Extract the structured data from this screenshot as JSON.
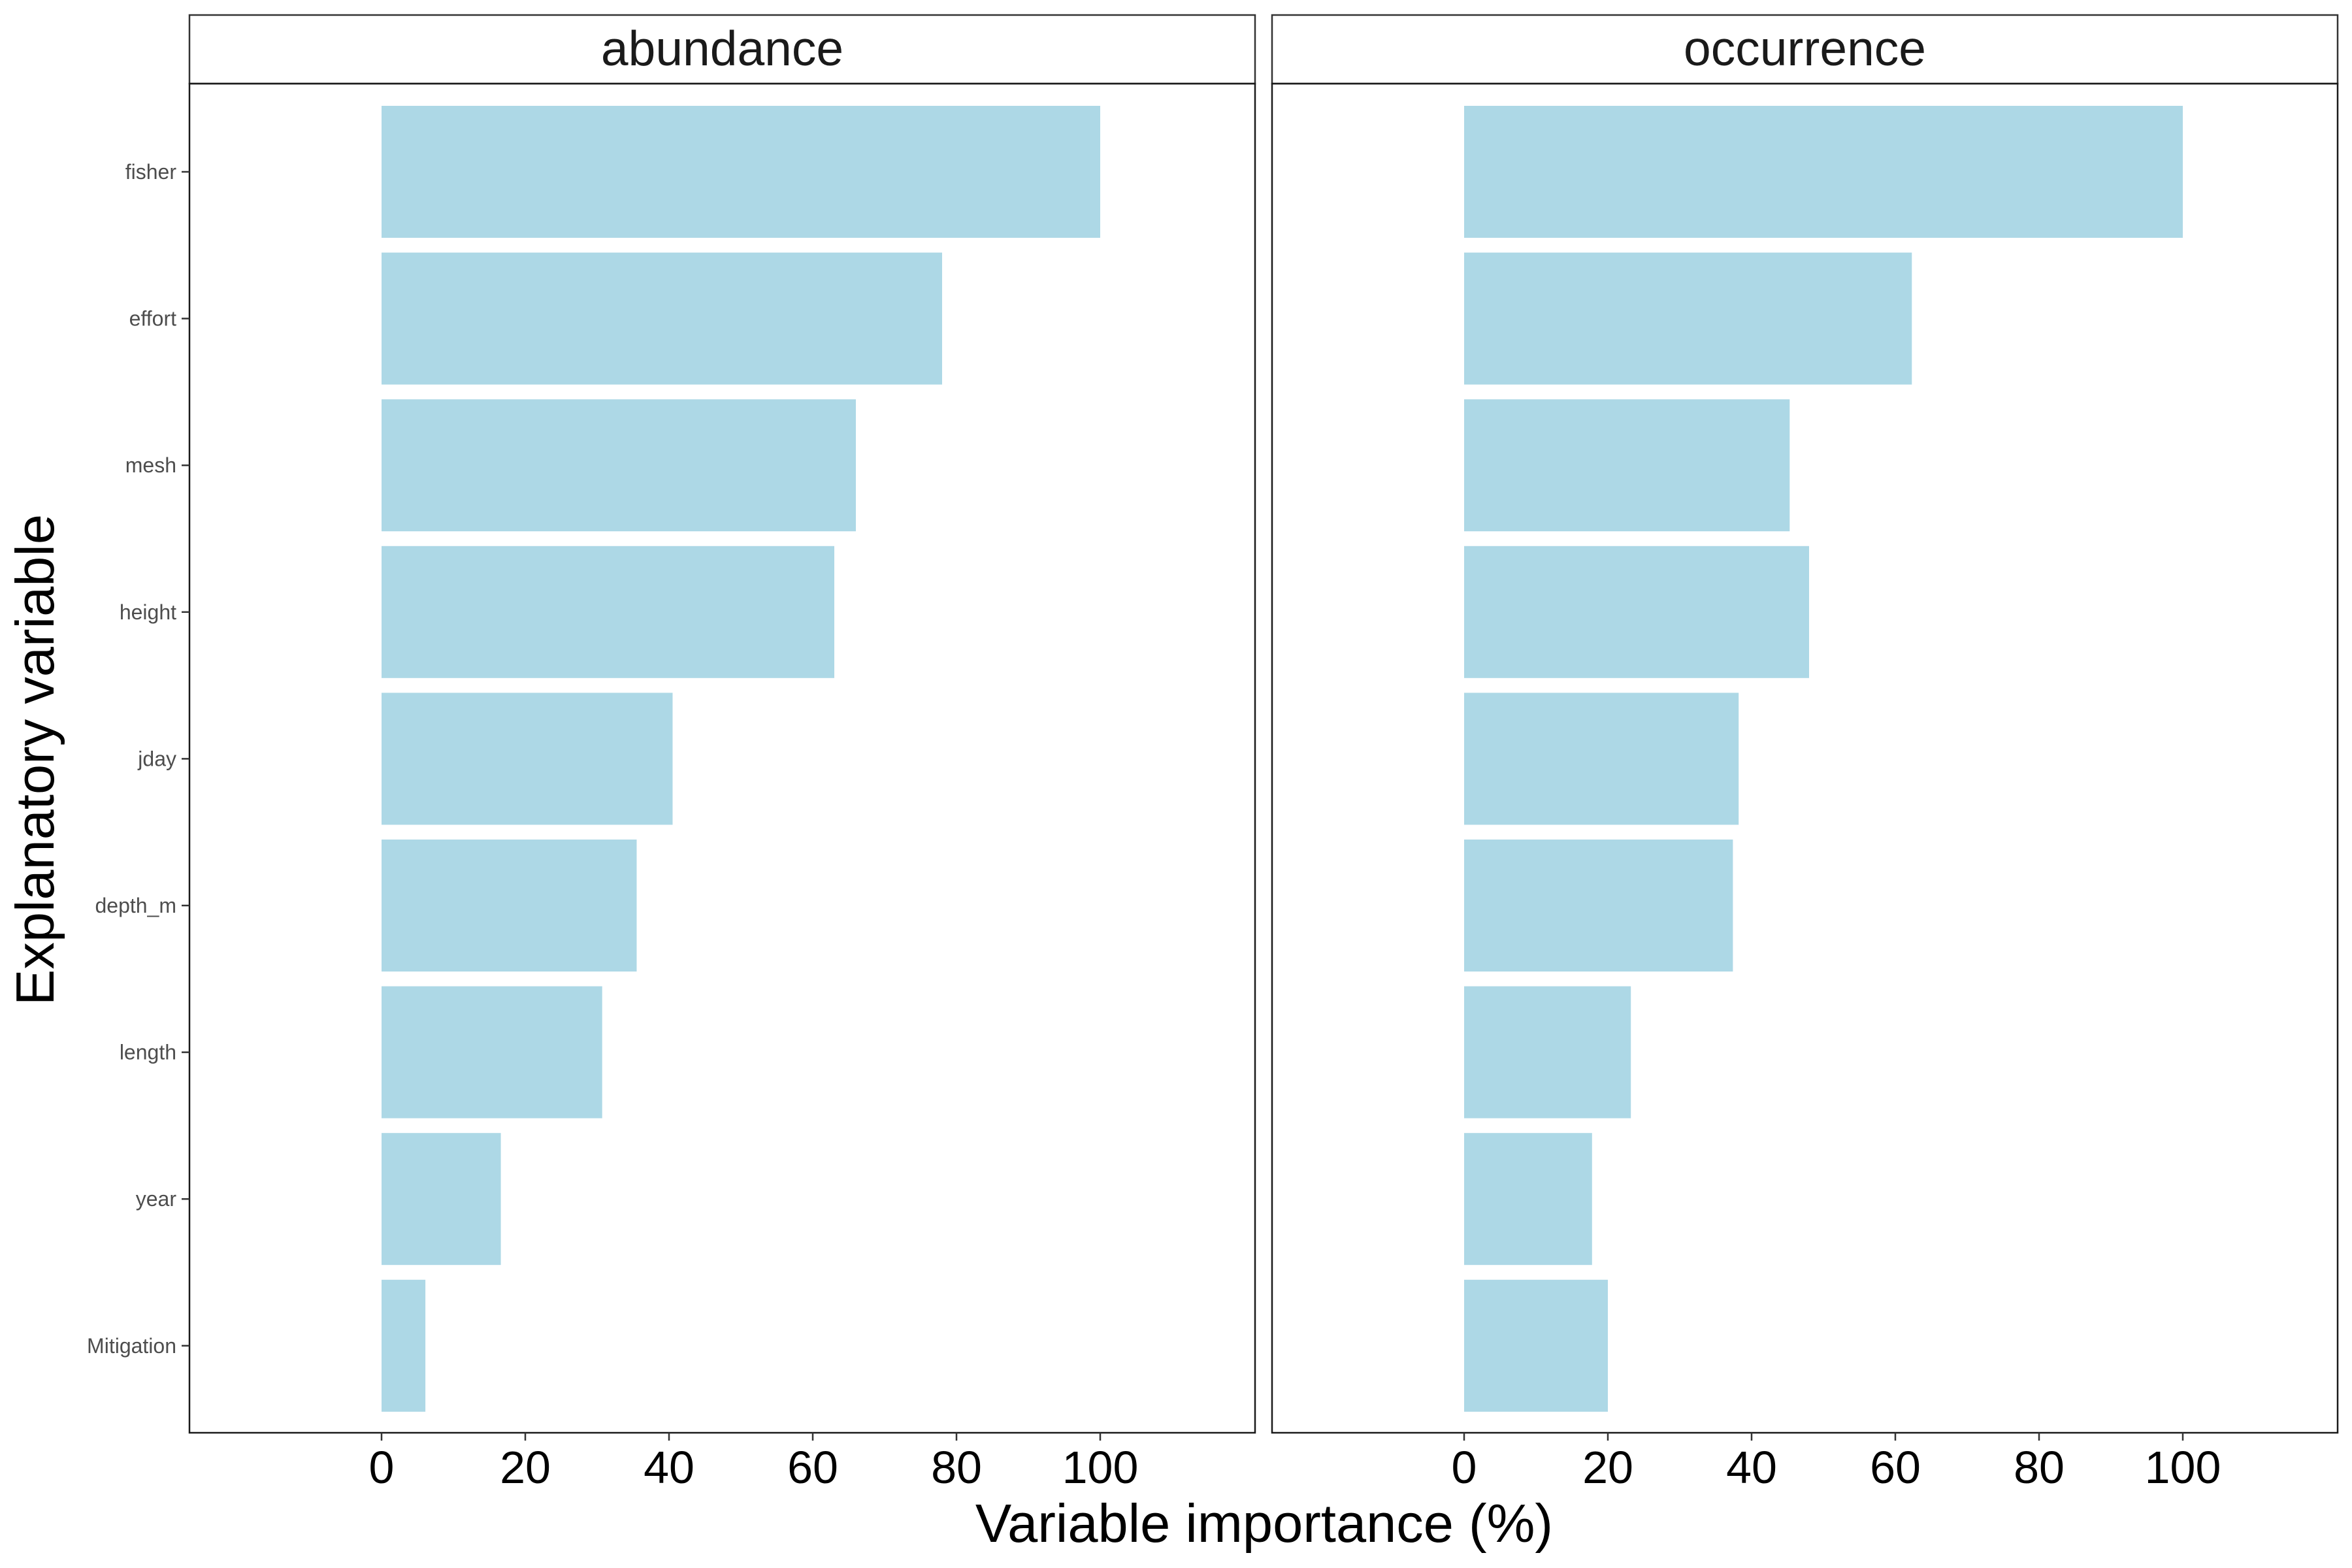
{
  "chart_data": {
    "type": "bar",
    "orientation": "horizontal",
    "xlabel": "Variable importance (%)",
    "ylabel": "Explanatory variable",
    "xlim": [
      -27,
      122
    ],
    "xticks": [
      0,
      20,
      40,
      60,
      80,
      100
    ],
    "grid": false,
    "bar_color": "#add8e6",
    "categories": [
      "fisher",
      "effort",
      "mesh",
      "height",
      "jday",
      "depth_m",
      "length",
      "year",
      "Mitigation"
    ],
    "panels": [
      {
        "strip": "abundance",
        "values": [
          100,
          78,
          66,
          63,
          40.5,
          35.5,
          30.7,
          16.6,
          6.1
        ]
      },
      {
        "strip": "occurrence",
        "values": [
          100,
          62.3,
          45.3,
          48,
          38.2,
          37.4,
          23.2,
          17.8,
          20
        ]
      }
    ]
  }
}
